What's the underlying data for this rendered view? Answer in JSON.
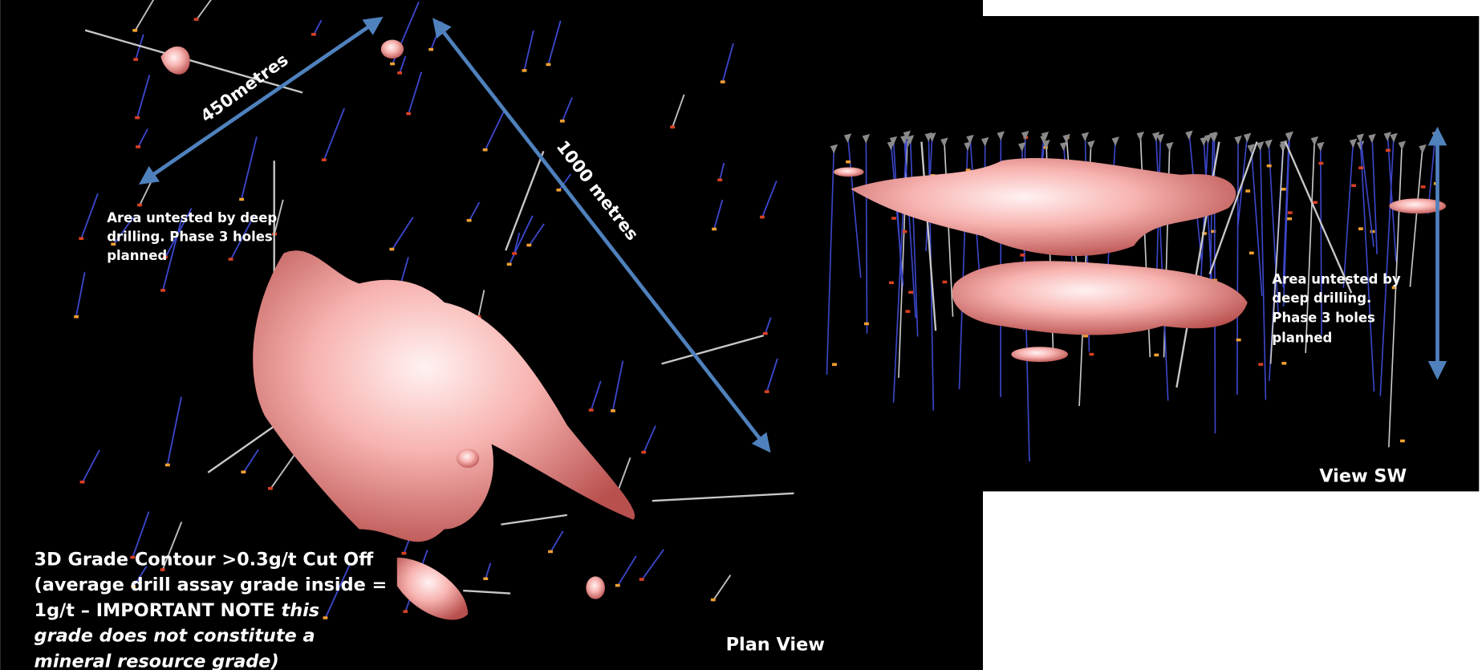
{
  "left_panel": {
    "dimension_short": "450metres",
    "dimension_long": "1000 metres",
    "untested_note": [
      "Area untested by deep",
      "drilling. Phase 3 holes",
      "planned"
    ],
    "grade_note": {
      "line1": "3D Grade Contour >0.3g/t Cut Off",
      "line2": "(average drill assay grade inside =",
      "line3": [
        "1g/t – IMPORTANT NOTE ",
        "this"
      ],
      "line4": "grade does not constitute a",
      "line5": "mineral resource grade)"
    },
    "view_label": "Plan View"
  },
  "right_panel": {
    "untested_note": [
      "Area untested by",
      "deep drilling.",
      "Phase 3 holes",
      "planned"
    ],
    "view_label": "View SW"
  }
}
